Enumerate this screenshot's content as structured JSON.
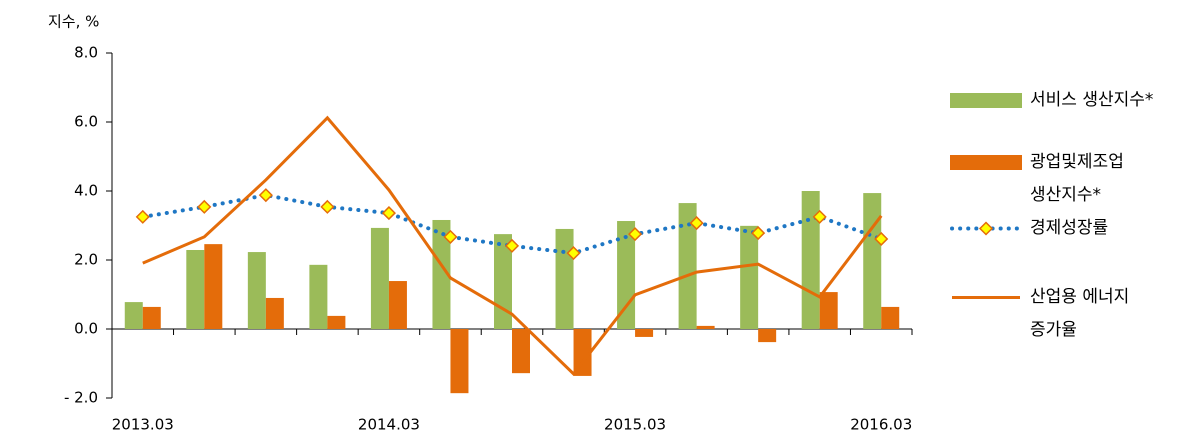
{
  "chart_data": {
    "type": "bar",
    "y_label": "지수, %",
    "categories": [
      "2013.03",
      null,
      null,
      null,
      "2014.03",
      null,
      null,
      null,
      "2015.03",
      null,
      null,
      null,
      "2016.03"
    ],
    "ylim": [
      -2,
      8
    ],
    "yticks": [
      {
        "value": -2,
        "label": "- 2.0"
      },
      {
        "value": 0,
        "label": "0.0"
      },
      {
        "value": 2,
        "label": "2.0"
      },
      {
        "value": 4,
        "label": "4.0"
      },
      {
        "value": 6,
        "label": "6.0"
      },
      {
        "value": 8,
        "label": "8.0"
      }
    ],
    "series": [
      {
        "name": "서비스 생산지수*",
        "type": "bar",
        "color": "#9bbb59",
        "values": [
          0.78,
          2.29,
          2.23,
          1.86,
          2.93,
          3.16,
          2.75,
          2.9,
          3.13,
          3.65,
          2.99,
          4.0,
          3.94
        ]
      },
      {
        "name": "광업및제조업\n생산지수*",
        "type": "bar",
        "color": "#e46c0a",
        "values": [
          0.64,
          2.46,
          0.9,
          0.38,
          1.39,
          -1.86,
          -1.28,
          -1.36,
          -0.23,
          0.09,
          -0.38,
          1.07,
          0.64
        ]
      },
      {
        "name": "경제성장률",
        "type": "line",
        "color": "#1f77c4",
        "dash": "dotted",
        "marker": "diamond",
        "marker_color": "#ffff00",
        "values": [
          3.25,
          3.54,
          3.88,
          3.54,
          3.36,
          2.67,
          2.41,
          2.2,
          2.75,
          3.07,
          2.78,
          3.25,
          2.61
        ]
      },
      {
        "name": "산업용 에너지\n증가율",
        "type": "line",
        "color": "#e46c0a",
        "values": [
          1.91,
          2.67,
          4.32,
          6.12,
          4.03,
          1.48,
          0.43,
          -1.3,
          0.99,
          1.65,
          1.88,
          0.93,
          3.28
        ]
      }
    ]
  }
}
